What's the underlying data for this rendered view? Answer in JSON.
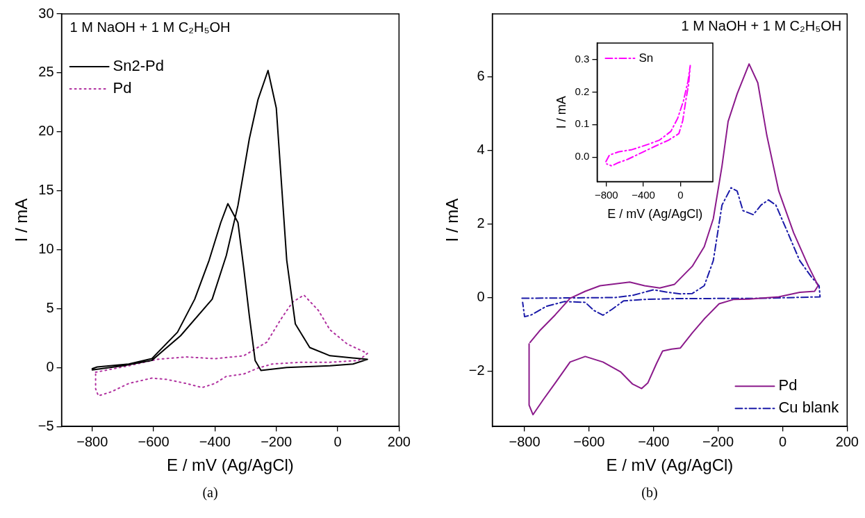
{
  "chart_data": [
    {
      "type": "line",
      "xlabel": "E / mV (Ag/AgCl)",
      "ylabel": "I / mA",
      "annotations": [
        "1 M NaOH + 1 M C₂H₅OH",
        "(a)"
      ],
      "xlim": [
        -900,
        200
      ],
      "ylim": [
        -5,
        30
      ],
      "xticks": [
        -800,
        -600,
        -400,
        -200,
        0,
        200
      ],
      "yticks": [
        -5,
        0,
        5,
        10,
        15,
        20,
        25,
        30
      ],
      "grid": false,
      "legend": "top left",
      "series": [
        {
          "name": "Sn2-Pd",
          "color": "#000000",
          "line_style": "solid",
          "x": [
            -800,
            -700,
            -606,
            -512,
            -409,
            -363,
            -325,
            -288,
            -260,
            -227,
            -200,
            -166,
            -138,
            -91,
            -25,
            97,
            50,
            -25,
            -166,
            -250,
            -269,
            -288,
            -306,
            -325,
            -358,
            -381,
            -419,
            -466,
            -522,
            -606,
            -681,
            -784,
            -800
          ],
          "values": [
            -0.2,
            0.15,
            0.6,
            2.7,
            5.8,
            9.5,
            13.75,
            19.4,
            22.7,
            25.2,
            22,
            9.1,
            3.7,
            1.7,
            1.0,
            0.7,
            0.3,
            0.15,
            0,
            -0.25,
            0.6,
            4.4,
            8.4,
            12.3,
            13.9,
            12.3,
            9.1,
            5.8,
            3.0,
            0.75,
            0.3,
            0.05,
            -0.1
          ]
        },
        {
          "name": "Pd",
          "color": "#b0309f",
          "line_style": "dotted",
          "x": [
            -789,
            -681,
            -587,
            -494,
            -400,
            -306,
            -231,
            -185,
            -147,
            -110,
            -63,
            -25,
            31,
            97,
            68,
            -25,
            -119,
            -213,
            -260,
            -306,
            -363,
            -400,
            -442,
            -494,
            -559,
            -606,
            -681,
            -737,
            -780,
            -789,
            -789
          ],
          "values": [
            -0.4,
            0.15,
            0.7,
            0.9,
            0.75,
            1.0,
            2.15,
            4.1,
            5.55,
            6.15,
            4.85,
            3.2,
            2.0,
            1.2,
            0.6,
            0.45,
            0.45,
            0.3,
            -0.05,
            -0.55,
            -0.75,
            -1.35,
            -1.7,
            -1.35,
            -1.0,
            -0.9,
            -1.35,
            -2.05,
            -2.4,
            -1.8,
            -0.55
          ]
        }
      ]
    },
    {
      "type": "line",
      "xlabel": "E / mV (Ag/AgCl)",
      "ylabel": "I / mA",
      "annotations": [
        "1 M NaOH + 1 M C₂H₅OH",
        "(b)"
      ],
      "xlim": [
        -900,
        200
      ],
      "ylim": [
        -3.5,
        7.7
      ],
      "xticks": [
        -800,
        -600,
        -400,
        -200,
        0,
        200
      ],
      "yticks": [
        -2,
        0,
        2,
        4,
        6
      ],
      "grid": false,
      "legend": "bottom right",
      "series": [
        {
          "name": "Pd",
          "color": "#8b1a8b",
          "line_style": "solid",
          "x": [
            -783,
            -751,
            -705,
            -659,
            -612,
            -566,
            -474,
            -428,
            -381,
            -335,
            -280,
            -243,
            -215,
            -188,
            -169,
            -141,
            -104,
            -77,
            -49,
            -12,
            34,
            80,
            110,
            99,
            53,
            -12,
            -104,
            -151,
            -197,
            -243,
            -280,
            -317,
            -344,
            -372,
            -391,
            -418,
            -437,
            -465,
            -502,
            -557,
            -612,
            -659,
            -705,
            -742,
            -774,
            -786,
            -786
          ],
          "values": [
            -1.22,
            -0.88,
            -0.47,
            -0.02,
            0.17,
            0.32,
            0.42,
            0.32,
            0.26,
            0.36,
            0.85,
            1.38,
            2.14,
            3.57,
            4.78,
            5.53,
            6.34,
            5.83,
            4.4,
            2.89,
            1.76,
            0.85,
            0.32,
            0.17,
            0.14,
            0.02,
            -0.04,
            -0.05,
            -0.17,
            -0.58,
            -0.96,
            -1.37,
            -1.4,
            -1.45,
            -1.79,
            -2.32,
            -2.47,
            -2.35,
            -2.02,
            -1.75,
            -1.6,
            -1.75,
            -2.32,
            -2.77,
            -3.18,
            -2.92,
            -1.26
          ]
        },
        {
          "name": "Cu blank",
          "color": "#1a1aa8",
          "line_style": "dashdot",
          "x": [
            -808,
            -520,
            -465,
            -400,
            -354,
            -317,
            -280,
            -243,
            -215,
            -188,
            -160,
            -141,
            -123,
            -91,
            -67,
            -44,
            -21,
            16,
            53,
            90,
            113,
            116,
            -58,
            -335,
            -428,
            -493,
            -529,
            -557,
            -585,
            -612,
            -677,
            -733,
            -779,
            -800,
            -806
          ],
          "values": [
            -0.02,
            0,
            0.06,
            0.21,
            0.14,
            0.1,
            0.11,
            0.32,
            1.0,
            2.51,
            2.98,
            2.89,
            2.36,
            2.25,
            2.51,
            2.65,
            2.51,
            1.76,
            1.0,
            0.55,
            0.32,
            0.02,
            -0.02,
            -0.03,
            -0.05,
            -0.09,
            -0.32,
            -0.48,
            -0.35,
            -0.13,
            -0.11,
            -0.24,
            -0.47,
            -0.52,
            -0.13
          ]
        }
      ]
    },
    {
      "type": "line",
      "xlabel": "E / mV (Ag/AgCl)",
      "ylabel": "I / mA",
      "xlim": [
        -900,
        350
      ],
      "ylim": [
        -0.075,
        0.35
      ],
      "xticks": [
        -800,
        -400,
        0
      ],
      "yticks": [
        {
          "value": 0,
          "label": "0.0"
        },
        {
          "value": 0.1,
          "label": "0.1"
        },
        {
          "value": 0.2,
          "label": "0.2"
        },
        {
          "value": 0.3,
          "label": "0.3"
        }
      ],
      "grid": false,
      "legend": "top left",
      "series": [
        {
          "name": "Sn",
          "color": "#ff00ff",
          "line_style": "dashdot",
          "x": [
            -805,
            -768,
            -670,
            -522,
            -350,
            -227,
            -103,
            -30,
            32,
            81,
            106,
            89,
            57,
            25,
            -17,
            -128,
            -276,
            -423,
            -571,
            -670,
            -743,
            -797
          ],
          "values": [
            -0.014,
            0.006,
            0.016,
            0.023,
            0.039,
            0.052,
            0.079,
            0.119,
            0.172,
            0.232,
            0.281,
            0.225,
            0.172,
            0.112,
            0.072,
            0.052,
            0.033,
            0.013,
            -0.007,
            -0.017,
            -0.027,
            -0.021
          ]
        }
      ]
    }
  ]
}
